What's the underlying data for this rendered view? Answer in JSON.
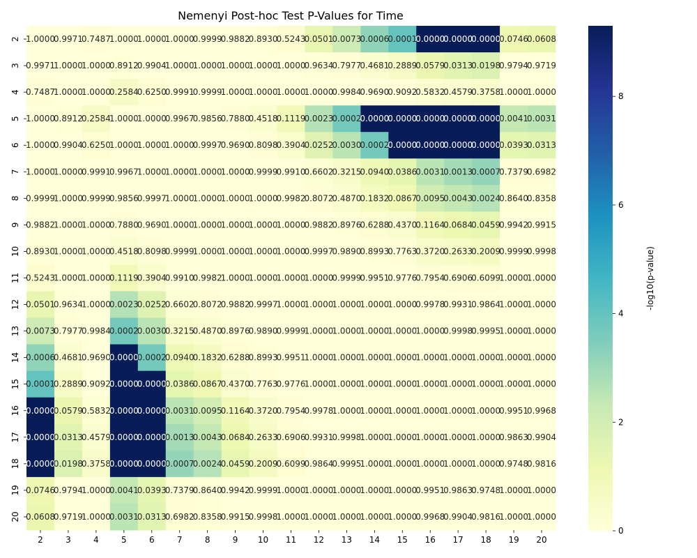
{
  "chart_data": {
    "type": "heatmap",
    "title": "Nemenyi Post-hoc Test P-Values for Time",
    "xlabel": "",
    "ylabel": "",
    "categories": [
      2,
      3,
      4,
      5,
      6,
      7,
      8,
      9,
      10,
      11,
      12,
      13,
      14,
      15,
      16,
      17,
      18,
      19,
      20
    ],
    "matrix": [
      [
        "1.0000",
        "0.9971",
        "0.7487",
        "1.0000",
        "1.0000",
        "1.0000",
        "0.9999",
        "0.9882",
        "0.8930",
        "0.5243",
        "0.0501",
        "0.0073",
        "0.0006",
        "0.0001",
        "0.0000",
        "0.0000",
        "0.0000",
        "0.0746",
        "0.0608"
      ],
      [
        "0.9971",
        "1.0000",
        "1.0000",
        "0.8912",
        "0.9904",
        "1.0000",
        "1.0000",
        "1.0000",
        "1.0000",
        "1.0000",
        "0.9634",
        "0.7977",
        "0.4681",
        "0.2889",
        "0.0579",
        "0.0313",
        "0.0198",
        "0.9794",
        "0.9719"
      ],
      [
        "0.7487",
        "1.0000",
        "1.0000",
        "0.2584",
        "0.6250",
        "0.9991",
        "0.9999",
        "1.0000",
        "1.0000",
        "1.0000",
        "1.0000",
        "0.9984",
        "0.9690",
        "0.9092",
        "0.5832",
        "0.4579",
        "0.3758",
        "1.0000",
        "1.0000"
      ],
      [
        "1.0000",
        "0.8912",
        "0.2584",
        "1.0000",
        "1.0000",
        "0.9967",
        "0.9856",
        "0.7880",
        "0.4518",
        "0.1119",
        "0.0023",
        "0.0002",
        "0.0000",
        "0.0000",
        "0.0000",
        "0.0000",
        "0.0000",
        "0.0041",
        "0.0031"
      ],
      [
        "1.0000",
        "0.9904",
        "0.6250",
        "1.0000",
        "1.0000",
        "1.0000",
        "0.9997",
        "0.9690",
        "0.8098",
        "0.3904",
        "0.0252",
        "0.0030",
        "0.0002",
        "0.0000",
        "0.0000",
        "0.0000",
        "0.0000",
        "0.0393",
        "0.0313"
      ],
      [
        "1.0000",
        "1.0000",
        "0.9991",
        "0.9967",
        "1.0000",
        "1.0000",
        "1.0000",
        "1.0000",
        "0.9999",
        "0.9910",
        "0.6602",
        "0.3215",
        "0.0940",
        "0.0386",
        "0.0031",
        "0.0013",
        "0.0007",
        "0.7379",
        "0.6982"
      ],
      [
        "0.9999",
        "1.0000",
        "0.9999",
        "0.9856",
        "0.9997",
        "1.0000",
        "1.0000",
        "1.0000",
        "1.0000",
        "0.9982",
        "0.8072",
        "0.4870",
        "0.1832",
        "0.0867",
        "0.0095",
        "0.0043",
        "0.0024",
        "0.8640",
        "0.8358"
      ],
      [
        "0.9882",
        "1.0000",
        "1.0000",
        "0.7880",
        "0.9690",
        "1.0000",
        "1.0000",
        "1.0000",
        "1.0000",
        "1.0000",
        "0.9882",
        "0.8976",
        "0.6288",
        "0.4370",
        "0.1164",
        "0.0684",
        "0.0459",
        "0.9942",
        "0.9915"
      ],
      [
        "0.8930",
        "1.0000",
        "1.0000",
        "0.4518",
        "0.8098",
        "0.9999",
        "1.0000",
        "1.0000",
        "1.0000",
        "1.0000",
        "0.9997",
        "0.9890",
        "0.8993",
        "0.7763",
        "0.3720",
        "0.2633",
        "0.2009",
        "0.9999",
        "0.9998"
      ],
      [
        "0.5243",
        "1.0000",
        "1.0000",
        "0.1119",
        "0.3904",
        "0.9910",
        "0.9982",
        "1.0000",
        "1.0000",
        "1.0000",
        "1.0000",
        "0.9999",
        "0.9951",
        "0.9776",
        "0.7954",
        "0.6906",
        "0.6099",
        "1.0000",
        "1.0000"
      ],
      [
        "0.0501",
        "0.9634",
        "1.0000",
        "0.0023",
        "0.0252",
        "0.6602",
        "0.8072",
        "0.9882",
        "0.9997",
        "1.0000",
        "1.0000",
        "1.0000",
        "1.0000",
        "1.0000",
        "0.9978",
        "0.9931",
        "0.9864",
        "1.0000",
        "1.0000"
      ],
      [
        "0.0073",
        "0.7977",
        "0.9984",
        "0.0002",
        "0.0030",
        "0.3215",
        "0.4870",
        "0.8976",
        "0.9890",
        "0.9999",
        "1.0000",
        "1.0000",
        "1.0000",
        "1.0000",
        "1.0000",
        "0.9998",
        "0.9995",
        "1.0000",
        "1.0000"
      ],
      [
        "0.0006",
        "0.4681",
        "0.9690",
        "0.0000",
        "0.0002",
        "0.0940",
        "0.1832",
        "0.6288",
        "0.8993",
        "0.9951",
        "1.0000",
        "1.0000",
        "1.0000",
        "1.0000",
        "1.0000",
        "1.0000",
        "1.0000",
        "1.0000",
        "1.0000"
      ],
      [
        "0.0001",
        "0.2889",
        "0.9092",
        "0.0000",
        "0.0000",
        "0.0386",
        "0.0867",
        "0.4370",
        "0.7763",
        "0.9776",
        "1.0000",
        "1.0000",
        "1.0000",
        "1.0000",
        "1.0000",
        "1.0000",
        "1.0000",
        "1.0000",
        "1.0000"
      ],
      [
        "0.0000",
        "0.0579",
        "0.5832",
        "0.0000",
        "0.0000",
        "0.0031",
        "0.0095",
        "0.1164",
        "0.3720",
        "0.7954",
        "0.9978",
        "1.0000",
        "1.0000",
        "1.0000",
        "1.0000",
        "1.0000",
        "1.0000",
        "0.9951",
        "0.9968"
      ],
      [
        "0.0000",
        "0.0313",
        "0.4579",
        "0.0000",
        "0.0000",
        "0.0013",
        "0.0043",
        "0.0684",
        "0.2633",
        "0.6906",
        "0.9931",
        "0.9998",
        "1.0000",
        "1.0000",
        "1.0000",
        "1.0000",
        "1.0000",
        "0.9863",
        "0.9904"
      ],
      [
        "0.0000",
        "0.0198",
        "0.3758",
        "0.0000",
        "0.0000",
        "0.0007",
        "0.0024",
        "0.0459",
        "0.2009",
        "0.6099",
        "0.9864",
        "0.9995",
        "1.0000",
        "1.0000",
        "1.0000",
        "1.0000",
        "1.0000",
        "0.9748",
        "0.9816"
      ],
      [
        "0.0746",
        "0.9794",
        "1.0000",
        "0.0041",
        "0.0393",
        "0.7379",
        "0.8640",
        "0.9942",
        "0.9999",
        "1.0000",
        "1.0000",
        "1.0000",
        "1.0000",
        "1.0000",
        "0.9951",
        "0.9863",
        "0.9748",
        "1.0000",
        "1.0000"
      ],
      [
        "0.0608",
        "0.9719",
        "1.0000",
        "0.0031",
        "0.0313",
        "0.6982",
        "0.8358",
        "0.9915",
        "0.9998",
        "1.0000",
        "1.0000",
        "1.0000",
        "1.0000",
        "1.0000",
        "0.9968",
        "0.9904",
        "0.9816",
        "1.0000",
        "1.0000"
      ]
    ],
    "colorbar": {
      "label": "-log10(p-value)",
      "range": [
        0,
        9.3
      ],
      "ticks": [
        0,
        2,
        4,
        6,
        8
      ]
    },
    "colormap": [
      "#ffffd9",
      "#edf8b1",
      "#c7e9b4",
      "#7fcdbb",
      "#41b6c4",
      "#1d91c0",
      "#225ea8",
      "#253494",
      "#081d58"
    ]
  }
}
